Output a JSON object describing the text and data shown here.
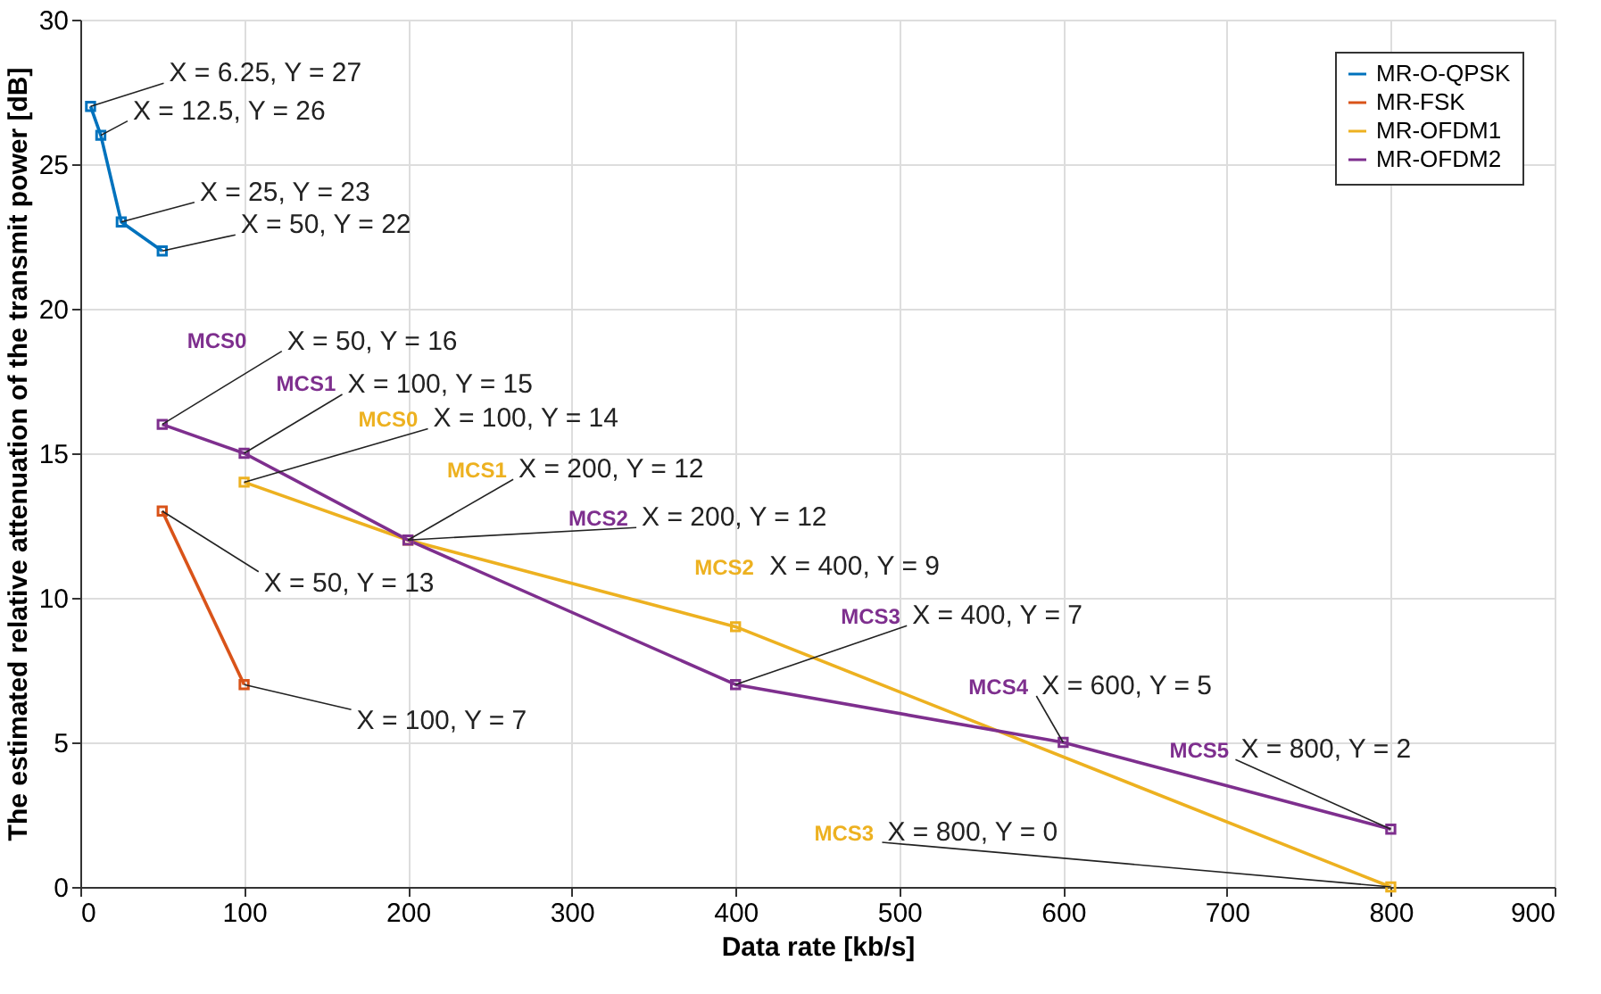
{
  "chart_data": {
    "type": "line",
    "xlabel": "Data rate [kb/s]",
    "ylabel": "The estimated relative attenuation of the transmit power [dB]",
    "xlim": [
      0,
      900
    ],
    "xticks": [
      0,
      100,
      200,
      300,
      400,
      500,
      600,
      700,
      800,
      900
    ],
    "ylim": [
      0,
      30
    ],
    "yticks": [
      0,
      5,
      10,
      15,
      20,
      25,
      30
    ],
    "grid": true,
    "legend": "top right",
    "marker": "square",
    "line_style": "solid",
    "series": [
      {
        "name": "MR-O-QPSK",
        "color": "#0072bd",
        "x": [
          6.25,
          12.5,
          25,
          50
        ],
        "values": [
          27,
          26,
          23,
          22
        ]
      },
      {
        "name": "MR-FSK",
        "color": "#d95319",
        "x": [
          50,
          100
        ],
        "values": [
          13,
          7
        ]
      },
      {
        "name": "MR-OFDM1",
        "color": "#edb120",
        "x": [
          100,
          200,
          400,
          800
        ],
        "values": [
          14,
          12,
          9,
          0
        ]
      },
      {
        "name": "MR-OFDM2",
        "color": "#7e2f8e",
        "x": [
          50,
          100,
          200,
          400,
          600,
          800
        ],
        "values": [
          16,
          15,
          12,
          7,
          5,
          2
        ]
      }
    ],
    "annotations": [
      {
        "text": "X = 6.25, Y = 27",
        "x": 6.25,
        "y": 27
      },
      {
        "text": "X = 12.5, Y = 26",
        "x": 12.5,
        "y": 26
      },
      {
        "text": "X = 25, Y = 23",
        "x": 25,
        "y": 23
      },
      {
        "text": "X = 50, Y = 22",
        "x": 50,
        "y": 22
      },
      "MCS0",
      {
        "text": "X = 50, Y = 16",
        "x": 50,
        "y": 16
      },
      "MCS1",
      {
        "text": "X = 100, Y = 15",
        "x": 100,
        "y": 15
      },
      "MCS0",
      {
        "text": "X = 100, Y = 14",
        "x": 100,
        "y": 14
      },
      "MCS1",
      {
        "text": "X = 200, Y = 12",
        "x": 200,
        "y": 12
      },
      "MCS2",
      {
        "text": "X = 200, Y = 12",
        "x": 200,
        "y": 12
      },
      {
        "text": "X = 50, Y = 13",
        "x": 50,
        "y": 13
      },
      "MCS2",
      {
        "text": "X = 400, Y = 9",
        "x": 400,
        "y": 9
      },
      "MCS3",
      {
        "text": "X = 400, Y = 7",
        "x": 400,
        "y": 7
      },
      {
        "text": "X = 100, Y = 7",
        "x": 100,
        "y": 7
      },
      "MCS4",
      {
        "text": "X = 600, Y = 5",
        "x": 600,
        "y": 5
      },
      "MCS5",
      {
        "text": "X = 800, Y = 2",
        "x": 800,
        "y": 2
      },
      "MCS3",
      {
        "text": "X = 800, Y = 0",
        "x": 800,
        "y": 0
      }
    ]
  }
}
